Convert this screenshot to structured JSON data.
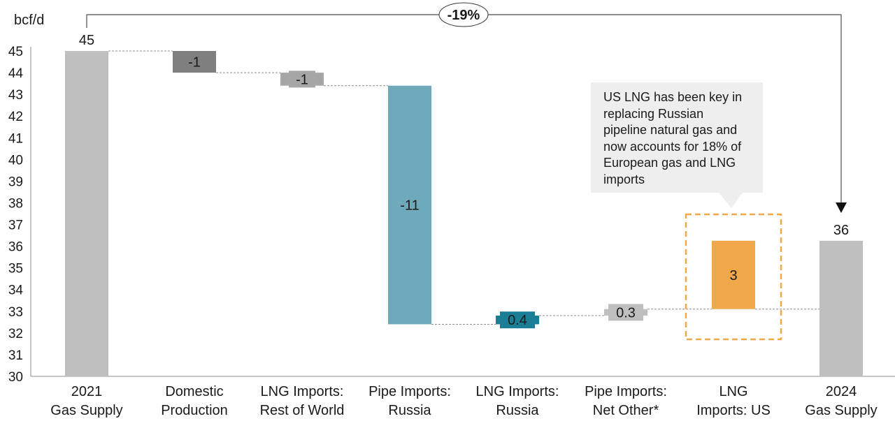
{
  "chart_data": {
    "type": "waterfall",
    "unit_label": "bcf/d",
    "y_ticks": [
      30,
      31,
      32,
      33,
      34,
      35,
      36,
      37,
      38,
      39,
      40,
      41,
      42,
      43,
      44,
      45
    ],
    "ylim": [
      30,
      45
    ],
    "grid": false,
    "bars": [
      {
        "category": [
          "2021",
          "Gas Supply"
        ],
        "kind": "total",
        "base": 30,
        "top": 45,
        "value_label": "45",
        "color": "#bfbfbf",
        "label_position": "above"
      },
      {
        "category": [
          "Domestic",
          "Production"
        ],
        "kind": "change",
        "base": 44,
        "top": 45,
        "value_label": "-1",
        "color": "#7f7f7f",
        "label_position": "inside"
      },
      {
        "category": [
          "LNG Imports:",
          "Rest of World"
        ],
        "kind": "change",
        "base": 43.4,
        "top": 44,
        "value_label": "-1",
        "color": "#a6a6a6",
        "label_position": "inside"
      },
      {
        "category": [
          "Pipe Imports:",
          "Russia"
        ],
        "kind": "change",
        "base": 32.4,
        "top": 43.4,
        "value_label": "-11",
        "color": "#6eaabb",
        "label_position": "inside"
      },
      {
        "category": [
          "LNG Imports:",
          "Russia"
        ],
        "kind": "change",
        "base": 32.4,
        "top": 32.8,
        "value_label": "0.4",
        "color": "#1a7f96",
        "label_position": "inside"
      },
      {
        "category": [
          "Pipe Imports:",
          "Net Other*"
        ],
        "kind": "change",
        "base": 32.8,
        "top": 33.1,
        "value_label": "0.3",
        "color": "#bfbfbf",
        "label_position": "inside"
      },
      {
        "category": [
          "LNG",
          "Imports: US"
        ],
        "kind": "change",
        "base": 33.1,
        "top": 36.25,
        "value_label": "3",
        "color": "#f0a84a",
        "label_position": "inside",
        "highlight": true
      },
      {
        "category": [
          "2024",
          "Gas Supply"
        ],
        "kind": "total",
        "base": 30,
        "top": 36.25,
        "value_label": "36",
        "color": "#bfbfbf",
        "label_position": "above"
      }
    ],
    "overall_change_label": "-19%",
    "annotation": "US LNG has been key in replacing Russian pipeline natural gas and now accounts for 18% of European gas and LNG imports"
  }
}
